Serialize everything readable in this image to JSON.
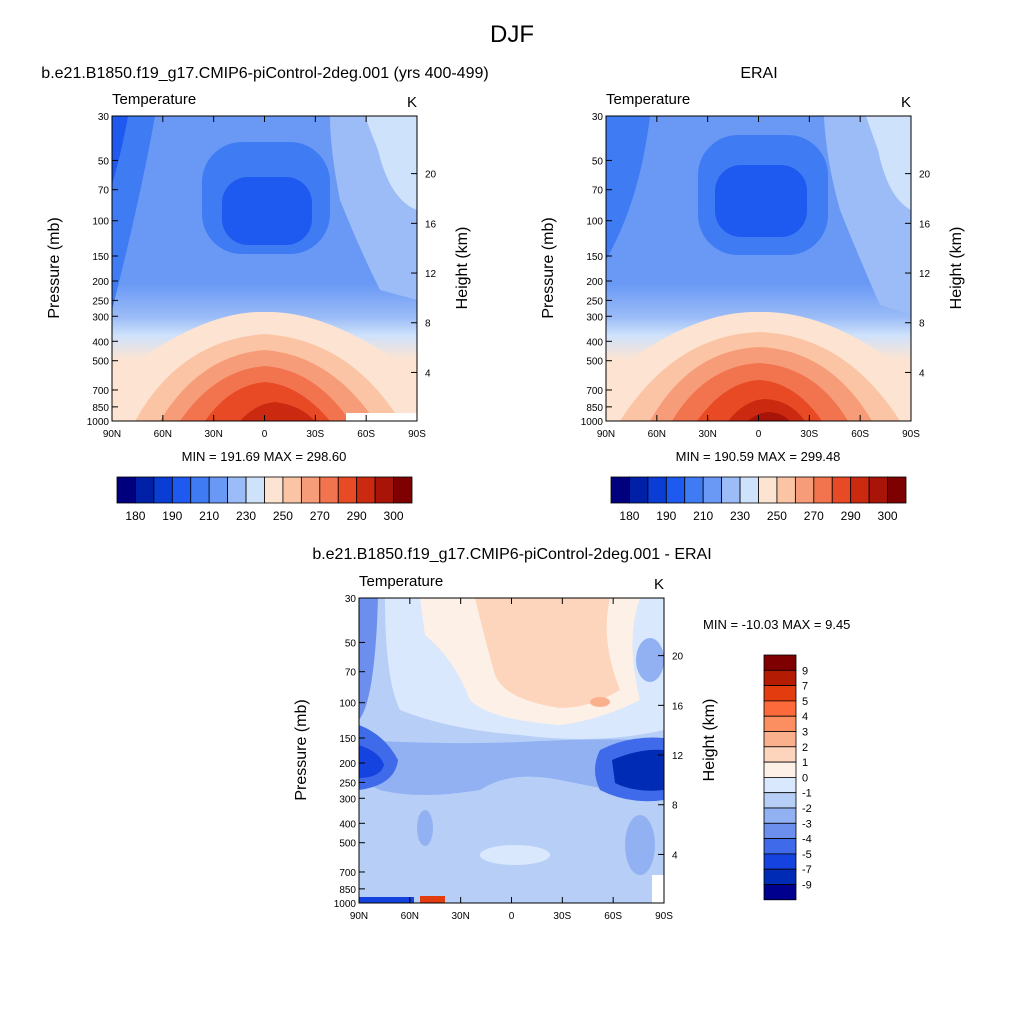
{
  "figure": {
    "title": "DJF"
  },
  "chart_data": [
    {
      "type": "contour",
      "panel_title": "b.e21.B1850.f19_g17.CMIP6-piControl-2deg.001 (yrs 400-499)",
      "variable": "Temperature",
      "units": "K",
      "ylabel": "Pressure (mb)",
      "ylabel_right": "Height (km)",
      "x_ticks": [
        "90N",
        "60N",
        "30N",
        "0",
        "30S",
        "60S",
        "90S"
      ],
      "y_ticks": [
        "30",
        "50",
        "70",
        "100",
        "150",
        "200",
        "250",
        "300",
        "400",
        "500",
        "700",
        "850",
        "1000"
      ],
      "height_ticks": [
        "20",
        "16",
        "12",
        "8",
        "4"
      ],
      "stats": "MIN = 191.69  MAX = 298.60",
      "min": 191.69,
      "max": 298.6,
      "colorbar_labels": [
        "180",
        "190",
        "210",
        "230",
        "250",
        "270",
        "290",
        "300"
      ]
    },
    {
      "type": "contour",
      "panel_title": "ERAI",
      "variable": "Temperature",
      "units": "K",
      "ylabel": "Pressure (mb)",
      "ylabel_right": "Height (km)",
      "x_ticks": [
        "90N",
        "60N",
        "30N",
        "0",
        "30S",
        "60S",
        "90S"
      ],
      "y_ticks": [
        "30",
        "50",
        "70",
        "100",
        "150",
        "200",
        "250",
        "300",
        "400",
        "500",
        "700",
        "850",
        "1000"
      ],
      "height_ticks": [
        "20",
        "16",
        "12",
        "8",
        "4"
      ],
      "stats": "MIN = 190.59  MAX = 299.48",
      "min": 190.59,
      "max": 299.48,
      "colorbar_labels": [
        "180",
        "190",
        "210",
        "230",
        "250",
        "270",
        "290",
        "300"
      ]
    },
    {
      "type": "contour",
      "panel_title": "b.e21.B1850.f19_g17.CMIP6-piControl-2deg.001 - ERAI",
      "variable": "Temperature",
      "units": "K",
      "ylabel": "Pressure (mb)",
      "ylabel_right": "Height (km)",
      "x_ticks": [
        "90N",
        "60N",
        "30N",
        "0",
        "30S",
        "60S",
        "90S"
      ],
      "y_ticks": [
        "30",
        "50",
        "70",
        "100",
        "150",
        "200",
        "250",
        "300",
        "400",
        "500",
        "700",
        "850",
        "1000"
      ],
      "height_ticks": [
        "20",
        "16",
        "12",
        "8",
        "4"
      ],
      "stats": "MIN = -10.03  MAX =   9.45",
      "min": -10.03,
      "max": 9.45,
      "colorbar_labels": [
        "9",
        "7",
        "5",
        "4",
        "3",
        "2",
        "1",
        "0",
        "-1",
        "-2",
        "-3",
        "-4",
        "-5",
        "-7",
        "-9"
      ]
    }
  ],
  "colors": {
    "abs_scale": [
      "#00007f",
      "#0020a8",
      "#0a3dd4",
      "#1f5af0",
      "#3f7bf3",
      "#6a99f5",
      "#9bbcf7",
      "#cfe2fb",
      "#fde4d2",
      "#fbc4a4",
      "#f79c78",
      "#f2744e",
      "#e84a25",
      "#cc2a10",
      "#a81407",
      "#7f0000"
    ],
    "diff_scale": [
      "#7f0000",
      "#b31b03",
      "#e33d0f",
      "#fc6a3b",
      "#fb8f62",
      "#fbb08d",
      "#fdd5bd",
      "#fdf0e6",
      "#d9e8fc",
      "#b7cff7",
      "#92b1f3",
      "#6c8fee",
      "#3f6bea",
      "#1543df",
      "#002bb5",
      "#00008f"
    ]
  }
}
